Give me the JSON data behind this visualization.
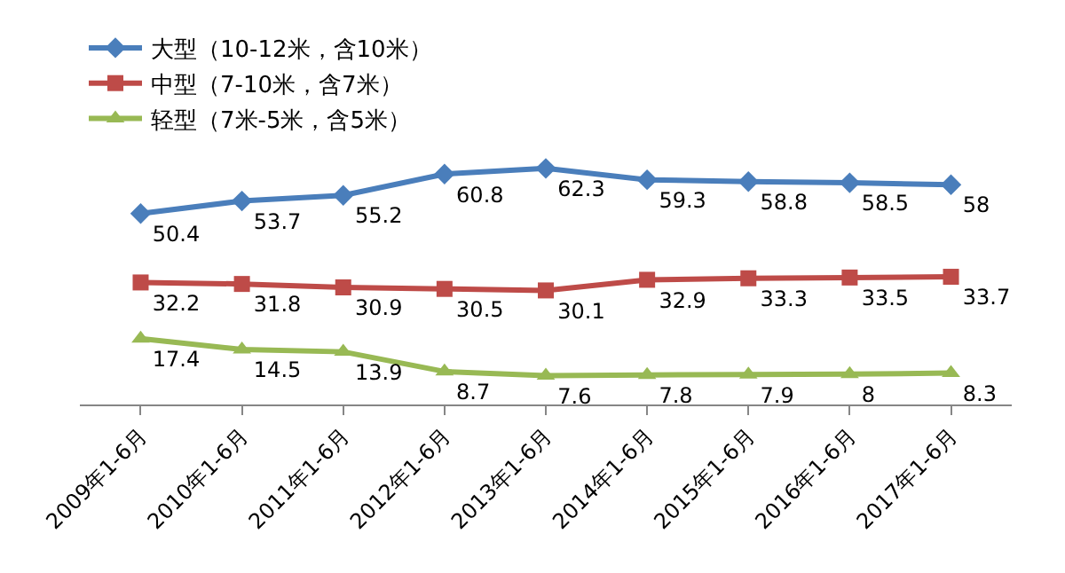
{
  "chart_data": {
    "type": "line",
    "categories": [
      "2009年1-6月",
      "2010年1-6月",
      "2011年1-6月",
      "2012年1-6月",
      "2013年1-6月",
      "2014年1-6月",
      "2015年1-6月",
      "2016年1-6月",
      "2017年1-6月"
    ],
    "series": [
      {
        "name": "大型（10-12米，含10米）",
        "color": "#4a7ebb",
        "marker": "diamond",
        "values": [
          50.4,
          53.7,
          55.2,
          60.8,
          62.3,
          59.3,
          58.8,
          58.5,
          58
        ]
      },
      {
        "name": "中型（7-10米，含7米）",
        "color": "#be4b48",
        "marker": "square",
        "values": [
          32.2,
          31.8,
          30.9,
          30.5,
          30.1,
          32.9,
          33.3,
          33.5,
          33.7
        ]
      },
      {
        "name": "轻型（7米-5米，含5米）",
        "color": "#98b954",
        "marker": "triangle",
        "values": [
          17.4,
          14.5,
          13.9,
          8.7,
          7.6,
          7.8,
          7.9,
          8,
          8.3
        ]
      }
    ],
    "data_labels": true,
    "legend": "top left",
    "tick_labels": "x",
    "line_style": "solid"
  }
}
